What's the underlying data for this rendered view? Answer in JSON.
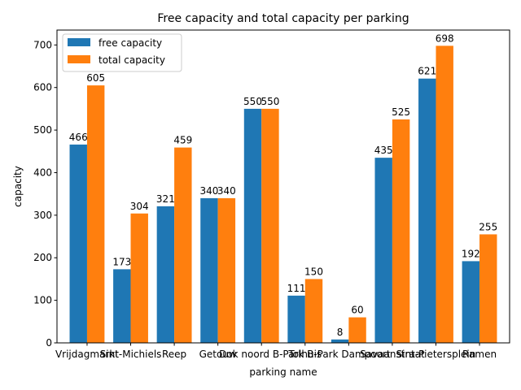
{
  "chart_data": {
    "type": "bar",
    "title": "Free capacity and total capacity per parking",
    "xlabel": "parking name",
    "ylabel": "capacity",
    "categories": [
      "Vrijdagmarkt",
      "Sint-Michiels",
      "Reep",
      "Getouw",
      "Dok noord B-Park",
      "Tolhuis",
      "B-Park Dampoort",
      "Savaanstraat",
      "Sint-Pietersplein",
      "Ramen"
    ],
    "series": [
      {
        "name": "free capacity",
        "values": [
          466,
          173,
          321,
          340,
          550,
          111,
          8,
          435,
          621,
          192
        ],
        "color": "#1f77b4"
      },
      {
        "name": "total capacity",
        "values": [
          605,
          304,
          459,
          340,
          550,
          150,
          60,
          525,
          698,
          255
        ],
        "color": "#ff7f0e"
      }
    ],
    "ylim": [
      0,
      735
    ],
    "yticks": [
      0,
      100,
      200,
      300,
      400,
      500,
      600,
      700
    ],
    "legend_position": "top-left",
    "grid": false
  }
}
